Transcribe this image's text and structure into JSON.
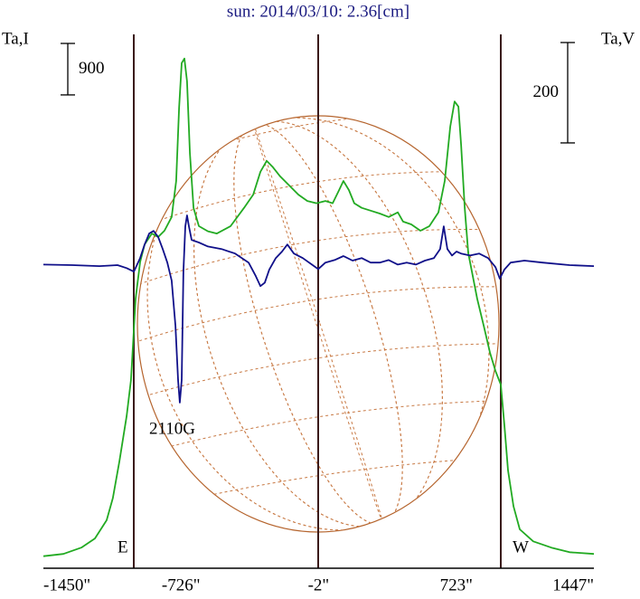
{
  "chart_data": {
    "type": "line",
    "title": "sun: 2014/03/10: 2.36[cm]",
    "ylabel": "Ta,I",
    "y2label": "Ta,V",
    "xlim": [
      -1450,
      1447
    ],
    "xticks": [
      {
        "value": -1450,
        "label": "-1450\""
      },
      {
        "value": -726,
        "label": "-726\""
      },
      {
        "value": -2,
        "label": "-2\""
      },
      {
        "value": 723,
        "label": "723\""
      },
      {
        "value": 1447,
        "label": "1447\""
      }
    ],
    "ylim": [
      0,
      9300
    ],
    "y2lim": [
      -600,
      460
    ],
    "y_scale_bar": 900,
    "y2_scale_bar": 200,
    "annotations": [
      "2110G",
      "E",
      "W"
    ],
    "series": [
      {
        "color": "#22aa22",
        "x": [
          -1450,
          -1345,
          -1250,
          -1179,
          -1117,
          -1084,
          -1050,
          -1012,
          -989,
          -965,
          -941,
          -917,
          -879,
          -846,
          -813,
          -775,
          -751,
          -736,
          -722,
          -708,
          -694,
          -679,
          -660,
          -632,
          -584,
          -537,
          -465,
          -394,
          -346,
          -308,
          -275,
          -242,
          -204,
          -156,
          -108,
          -61,
          -13,
          34,
          72,
          106,
          129,
          158,
          186,
          225,
          272,
          320,
          367,
          415,
          443,
          486,
          534,
          581,
          629,
          662,
          691,
          714,
          734,
          748,
          767,
          786,
          805,
          833,
          867,
          900,
          929,
          957,
          976,
          995,
          1024,
          1057,
          1128,
          1223,
          1319,
          1447
        ],
        "values": [
          210,
          250,
          360,
          520,
          840,
          1230,
          1870,
          2660,
          3290,
          4710,
          5350,
          5660,
          5850,
          5790,
          5900,
          6140,
          6770,
          8040,
          8830,
          8910,
          8510,
          7250,
          6300,
          5980,
          5890,
          5850,
          5980,
          6300,
          6530,
          6930,
          7120,
          7010,
          6850,
          6690,
          6530,
          6420,
          6380,
          6420,
          6380,
          6610,
          6770,
          6610,
          6380,
          6300,
          6250,
          6200,
          6140,
          6220,
          6060,
          6010,
          5900,
          5980,
          6220,
          6770,
          7720,
          8160,
          8070,
          7400,
          6300,
          5510,
          5190,
          4710,
          4240,
          3770,
          3450,
          3210,
          2500,
          1710,
          1080,
          680,
          470,
          360,
          280,
          250
        ]
      },
      {
        "color": "#10108a",
        "axis": "y2",
        "x": [
          -1450,
          -1298,
          -1155,
          -1060,
          -1012,
          -974,
          -941,
          -917,
          -893,
          -870,
          -846,
          -822,
          -798,
          -775,
          -755,
          -741,
          -732,
          -722,
          -713,
          -703,
          -694,
          -684,
          -670,
          -632,
          -584,
          -513,
          -441,
          -370,
          -332,
          -308,
          -285,
          -261,
          -227,
          -194,
          -166,
          -132,
          -85,
          -37,
          -4,
          34,
          82,
          129,
          177,
          225,
          272,
          320,
          367,
          415,
          462,
          510,
          558,
          605,
          638,
          657,
          676,
          700,
          724,
          748,
          795,
          843,
          890,
          929,
          952,
          976,
          1009,
          1081,
          1176,
          1319,
          1447
        ],
        "values": [
          5,
          4,
          2,
          4,
          -2,
          -9,
          18,
          45,
          67,
          72,
          60,
          36,
          9,
          -27,
          -117,
          -225,
          -270,
          -225,
          -9,
          81,
          103,
          81,
          54,
          49,
          41,
          36,
          27,
          9,
          -18,
          -38,
          -31,
          -5,
          18,
          31,
          45,
          27,
          18,
          5,
          -4,
          9,
          14,
          22,
          13,
          18,
          9,
          9,
          14,
          5,
          9,
          5,
          13,
          18,
          36,
          81,
          36,
          23,
          31,
          27,
          23,
          27,
          18,
          0,
          -23,
          -5,
          9,
          13,
          9,
          4,
          2
        ]
      }
    ]
  }
}
